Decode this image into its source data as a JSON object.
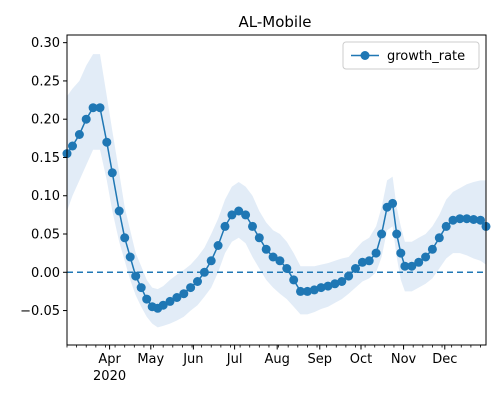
{
  "chart_data": {
    "type": "line",
    "title": "AL-Mobile",
    "xlabel": "",
    "ylabel": "",
    "legend": {
      "entries": [
        "growth_rate"
      ],
      "placement": "top-right"
    },
    "x_ticks": [
      "Apr",
      "May",
      "Jun",
      "Jul",
      "Aug",
      "Sep",
      "Oct",
      "Nov",
      "Dec"
    ],
    "x_year_label": "2020",
    "x_range": [
      "2020-03-01",
      "2020-12-31"
    ],
    "y_ticks": [
      "0.30",
      "0.25",
      "0.20",
      "0.15",
      "0.10",
      "0.05",
      "0.00",
      "−0.05"
    ],
    "ylim": [
      -0.095,
      0.31
    ],
    "reference_line": {
      "y": 0.0,
      "style": "dashed"
    },
    "colors": {
      "series": "#1f77b4",
      "band": "#cfe0f2"
    },
    "series": [
      {
        "name": "growth_rate",
        "x": [
          "2020-03-01",
          "2020-03-05",
          "2020-03-10",
          "2020-03-15",
          "2020-03-20",
          "2020-03-25",
          "2020-03-30",
          "2020-04-03",
          "2020-04-08",
          "2020-04-12",
          "2020-04-16",
          "2020-04-20",
          "2020-04-24",
          "2020-04-28",
          "2020-05-02",
          "2020-05-06",
          "2020-05-10",
          "2020-05-15",
          "2020-05-20",
          "2020-05-25",
          "2020-05-30",
          "2020-06-04",
          "2020-06-09",
          "2020-06-14",
          "2020-06-19",
          "2020-06-24",
          "2020-06-29",
          "2020-07-04",
          "2020-07-09",
          "2020-07-14",
          "2020-07-19",
          "2020-07-24",
          "2020-07-29",
          "2020-08-03",
          "2020-08-08",
          "2020-08-13",
          "2020-08-18",
          "2020-08-23",
          "2020-08-28",
          "2020-09-02",
          "2020-09-07",
          "2020-09-12",
          "2020-09-17",
          "2020-09-22",
          "2020-09-27",
          "2020-10-02",
          "2020-10-07",
          "2020-10-12",
          "2020-10-16",
          "2020-10-20",
          "2020-10-24",
          "2020-10-27",
          "2020-10-30",
          "2020-11-02",
          "2020-11-07",
          "2020-11-12",
          "2020-11-17",
          "2020-11-22",
          "2020-11-27",
          "2020-12-02",
          "2020-12-07",
          "2020-12-12",
          "2020-12-17",
          "2020-12-22",
          "2020-12-27",
          "2020-12-31"
        ],
        "y": [
          0.155,
          0.165,
          0.18,
          0.2,
          0.215,
          0.215,
          0.17,
          0.13,
          0.08,
          0.045,
          0.02,
          -0.005,
          -0.02,
          -0.035,
          -0.045,
          -0.047,
          -0.043,
          -0.038,
          -0.033,
          -0.028,
          -0.02,
          -0.012,
          0.0,
          0.015,
          0.035,
          0.06,
          0.075,
          0.08,
          0.075,
          0.06,
          0.045,
          0.03,
          0.02,
          0.015,
          0.005,
          -0.01,
          -0.025,
          -0.025,
          -0.023,
          -0.02,
          -0.018,
          -0.015,
          -0.012,
          -0.005,
          0.005,
          0.013,
          0.015,
          0.025,
          0.05,
          0.085,
          0.09,
          0.05,
          0.025,
          0.008,
          0.008,
          0.013,
          0.02,
          0.03,
          0.045,
          0.06,
          0.068,
          0.07,
          0.07,
          0.069,
          0.068,
          0.06
        ],
        "lower": [
          0.08,
          0.1,
          0.12,
          0.14,
          0.16,
          0.16,
          0.12,
          0.08,
          0.04,
          0.015,
          -0.01,
          -0.03,
          -0.045,
          -0.058,
          -0.067,
          -0.072,
          -0.07,
          -0.067,
          -0.063,
          -0.058,
          -0.05,
          -0.043,
          -0.032,
          -0.02,
          0.0,
          0.025,
          0.04,
          0.045,
          0.038,
          0.02,
          0.005,
          -0.01,
          -0.02,
          -0.028,
          -0.035,
          -0.045,
          -0.055,
          -0.055,
          -0.052,
          -0.048,
          -0.045,
          -0.04,
          -0.035,
          -0.028,
          -0.02,
          -0.012,
          -0.008,
          0.0,
          0.02,
          0.055,
          0.06,
          0.02,
          -0.01,
          -0.025,
          -0.025,
          -0.02,
          -0.015,
          -0.008,
          0.005,
          0.018,
          0.025,
          0.025,
          0.022,
          0.018,
          0.015,
          0.01
        ],
        "upper": [
          0.23,
          0.24,
          0.25,
          0.27,
          0.285,
          0.285,
          0.23,
          0.185,
          0.13,
          0.085,
          0.055,
          0.025,
          0.008,
          -0.01,
          -0.02,
          -0.022,
          -0.018,
          -0.01,
          -0.003,
          0.003,
          0.01,
          0.02,
          0.032,
          0.05,
          0.07,
          0.095,
          0.112,
          0.118,
          0.112,
          0.1,
          0.08,
          0.065,
          0.055,
          0.05,
          0.04,
          0.025,
          0.008,
          0.008,
          0.008,
          0.01,
          0.012,
          0.015,
          0.018,
          0.02,
          0.03,
          0.04,
          0.045,
          0.06,
          0.085,
          0.12,
          0.125,
          0.085,
          0.06,
          0.04,
          0.04,
          0.045,
          0.05,
          0.06,
          0.075,
          0.095,
          0.105,
          0.11,
          0.115,
          0.118,
          0.12,
          0.12
        ]
      }
    ]
  }
}
